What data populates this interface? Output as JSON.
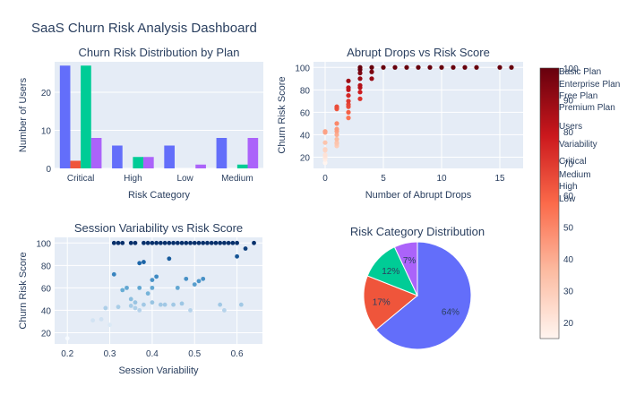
{
  "title": "SaaS Churn Risk Analysis Dashboard",
  "colors": {
    "plot_bg": "#e5ecf6",
    "grid": "#ffffff",
    "text": "#2a3f5f",
    "series": [
      "#636efa",
      "#ef553b",
      "#00cc96",
      "#ab63fa"
    ]
  },
  "legend": {
    "entries": [
      "Basic Plan",
      "Enterprise Plan",
      "Free Plan",
      "Premium Plan",
      "Users",
      "Variability",
      "Critical",
      "Medium",
      "High",
      "Low"
    ]
  },
  "colorbar": {
    "ticks": [
      20,
      30,
      40,
      50,
      60,
      70,
      80,
      90,
      100
    ],
    "range": [
      15,
      100
    ],
    "colors": [
      "#fff5f0",
      "#fcbba1",
      "#fb6a4a",
      "#cb181d",
      "#67000d"
    ]
  },
  "chart_data": [
    {
      "type": "bar",
      "title": "Churn Risk Distribution by Plan",
      "xlabel": "Risk Category",
      "ylabel": "Number of Users",
      "categories": [
        "Critical",
        "High",
        "Low",
        "Medium"
      ],
      "ylim": [
        0,
        28
      ],
      "yticks": [
        0,
        10,
        20
      ],
      "series": [
        {
          "name": "Basic Plan",
          "values": [
            27,
            6,
            6,
            8
          ]
        },
        {
          "name": "Enterprise Plan",
          "values": [
            2,
            0,
            0,
            0
          ]
        },
        {
          "name": "Free Plan",
          "values": [
            27,
            3,
            0,
            1
          ]
        },
        {
          "name": "Premium Plan",
          "values": [
            8,
            3,
            1,
            8
          ]
        }
      ]
    },
    {
      "type": "scatter",
      "title": "Abrupt Drops vs Risk Score",
      "xlabel": "Number of Abrupt Drops",
      "ylabel": "Churn Risk Score",
      "xlim": [
        -1,
        17
      ],
      "ylim": [
        10,
        105
      ],
      "xticks": [
        0,
        5,
        10,
        15
      ],
      "yticks": [
        20,
        40,
        60,
        80,
        100
      ],
      "points": [
        [
          0,
          15
        ],
        [
          0,
          18
        ],
        [
          0,
          20
        ],
        [
          0,
          22
        ],
        [
          0,
          26
        ],
        [
          0,
          27
        ],
        [
          0,
          33
        ],
        [
          0,
          42
        ],
        [
          0,
          43
        ],
        [
          1,
          30
        ],
        [
          1,
          32
        ],
        [
          1,
          33
        ],
        [
          1,
          36
        ],
        [
          1,
          40
        ],
        [
          1,
          43
        ],
        [
          1,
          45
        ],
        [
          1,
          50
        ],
        [
          1,
          63
        ],
        [
          1,
          64
        ],
        [
          1,
          65
        ],
        [
          2,
          55
        ],
        [
          2,
          60
        ],
        [
          2,
          65
        ],
        [
          2,
          67
        ],
        [
          2,
          70
        ],
        [
          2,
          75
        ],
        [
          2,
          80
        ],
        [
          2,
          82
        ],
        [
          2,
          88
        ],
        [
          3,
          72
        ],
        [
          3,
          78
        ],
        [
          3,
          82
        ],
        [
          3,
          84
        ],
        [
          3,
          90
        ],
        [
          3,
          95
        ],
        [
          3,
          98
        ],
        [
          3,
          100
        ],
        [
          4,
          90
        ],
        [
          4,
          96
        ],
        [
          4,
          100
        ],
        [
          5,
          100
        ],
        [
          6,
          100
        ],
        [
          7,
          100
        ],
        [
          8,
          100
        ],
        [
          9,
          100
        ],
        [
          10,
          100
        ],
        [
          11,
          100
        ],
        [
          12,
          100
        ],
        [
          13,
          100
        ],
        [
          15,
          100
        ],
        [
          16,
          100
        ]
      ]
    },
    {
      "type": "scatter",
      "title": "Session Variability vs Risk Score",
      "xlabel": "Session Variability",
      "ylabel": "Churn Risk Score",
      "xlim": [
        0.17,
        0.66
      ],
      "ylim": [
        10,
        105
      ],
      "xticks": [
        0.2,
        0.3,
        0.4,
        0.5,
        0.6
      ],
      "yticks": [
        20,
        40,
        60,
        80,
        100
      ],
      "points": [
        [
          0.2,
          15
        ],
        [
          0.26,
          31
        ],
        [
          0.28,
          32
        ],
        [
          0.29,
          42
        ],
        [
          0.3,
          27
        ],
        [
          0.31,
          72
        ],
        [
          0.32,
          43
        ],
        [
          0.33,
          58
        ],
        [
          0.34,
          60
        ],
        [
          0.35,
          50
        ],
        [
          0.35,
          44
        ],
        [
          0.36,
          42
        ],
        [
          0.36,
          47
        ],
        [
          0.37,
          82
        ],
        [
          0.37,
          60
        ],
        [
          0.37,
          40
        ],
        [
          0.38,
          45
        ],
        [
          0.38,
          83
        ],
        [
          0.39,
          55
        ],
        [
          0.4,
          67
        ],
        [
          0.4,
          60
        ],
        [
          0.4,
          47
        ],
        [
          0.41,
          70
        ],
        [
          0.42,
          45
        ],
        [
          0.43,
          45
        ],
        [
          0.44,
          86
        ],
        [
          0.45,
          45
        ],
        [
          0.46,
          60
        ],
        [
          0.47,
          46
        ],
        [
          0.48,
          68
        ],
        [
          0.49,
          40
        ],
        [
          0.5,
          63
        ],
        [
          0.51,
          66
        ],
        [
          0.52,
          68
        ],
        [
          0.56,
          45
        ],
        [
          0.57,
          40
        ],
        [
          0.6,
          88
        ],
        [
          0.61,
          45
        ],
        [
          0.62,
          95
        ],
        [
          0.64,
          100
        ],
        [
          0.31,
          100
        ],
        [
          0.32,
          100
        ],
        [
          0.33,
          100
        ],
        [
          0.35,
          100
        ],
        [
          0.36,
          100
        ],
        [
          0.38,
          100
        ],
        [
          0.39,
          100
        ],
        [
          0.4,
          100
        ],
        [
          0.41,
          100
        ],
        [
          0.42,
          100
        ],
        [
          0.43,
          100
        ],
        [
          0.44,
          100
        ],
        [
          0.45,
          100
        ],
        [
          0.46,
          100
        ],
        [
          0.47,
          100
        ],
        [
          0.48,
          100
        ],
        [
          0.49,
          100
        ],
        [
          0.5,
          100
        ],
        [
          0.51,
          100
        ],
        [
          0.52,
          100
        ],
        [
          0.53,
          100
        ],
        [
          0.54,
          100
        ],
        [
          0.55,
          100
        ],
        [
          0.56,
          100
        ],
        [
          0.57,
          100
        ],
        [
          0.58,
          100
        ],
        [
          0.59,
          100
        ],
        [
          0.6,
          100
        ]
      ]
    },
    {
      "type": "pie",
      "title": "Risk Category Distribution",
      "slices": [
        {
          "label": "Critical",
          "value": 64,
          "text": "64%",
          "color": "#636efa"
        },
        {
          "label": "Medium",
          "value": 17,
          "text": "17%",
          "color": "#ef553b"
        },
        {
          "label": "High",
          "value": 12,
          "text": "12%",
          "color": "#00cc96"
        },
        {
          "label": "Low",
          "value": 7,
          "text": "7%",
          "color": "#ab63fa"
        }
      ]
    }
  ]
}
